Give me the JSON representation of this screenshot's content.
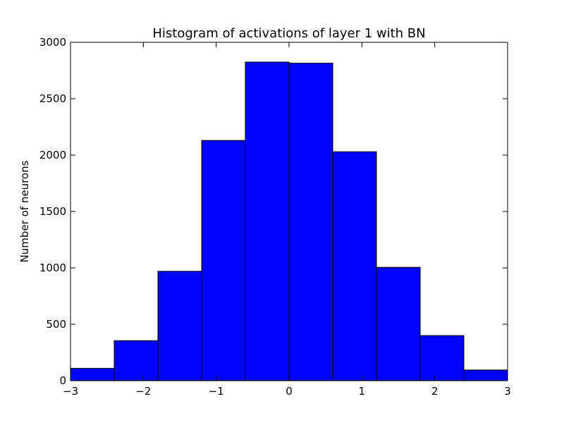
{
  "chart_data": {
    "type": "bar",
    "title": "Histogram of activations of layer 1  with BN",
    "xlabel": "",
    "ylabel": "Number of neurons",
    "xlim": [
      -3,
      3
    ],
    "ylim": [
      0,
      3000
    ],
    "bin_edges": [
      -3,
      -2.4,
      -1.8,
      -1.2,
      -0.6,
      0,
      0.6,
      1.2,
      1.8,
      2.4,
      3
    ],
    "values": [
      110,
      355,
      970,
      2130,
      2825,
      2815,
      2030,
      1005,
      400,
      95
    ],
    "bar_color": "#0000ff",
    "xticks": [
      -3,
      -2,
      -1,
      0,
      1,
      2,
      3
    ],
    "xtick_labels": [
      "−3",
      "−2",
      "−1",
      "0",
      "1",
      "2",
      "3"
    ],
    "yticks": [
      0,
      500,
      1000,
      1500,
      2000,
      2500,
      3000
    ],
    "ytick_labels": [
      "0",
      "500",
      "1000",
      "1500",
      "2000",
      "2500",
      "3000"
    ],
    "grid": false
  }
}
